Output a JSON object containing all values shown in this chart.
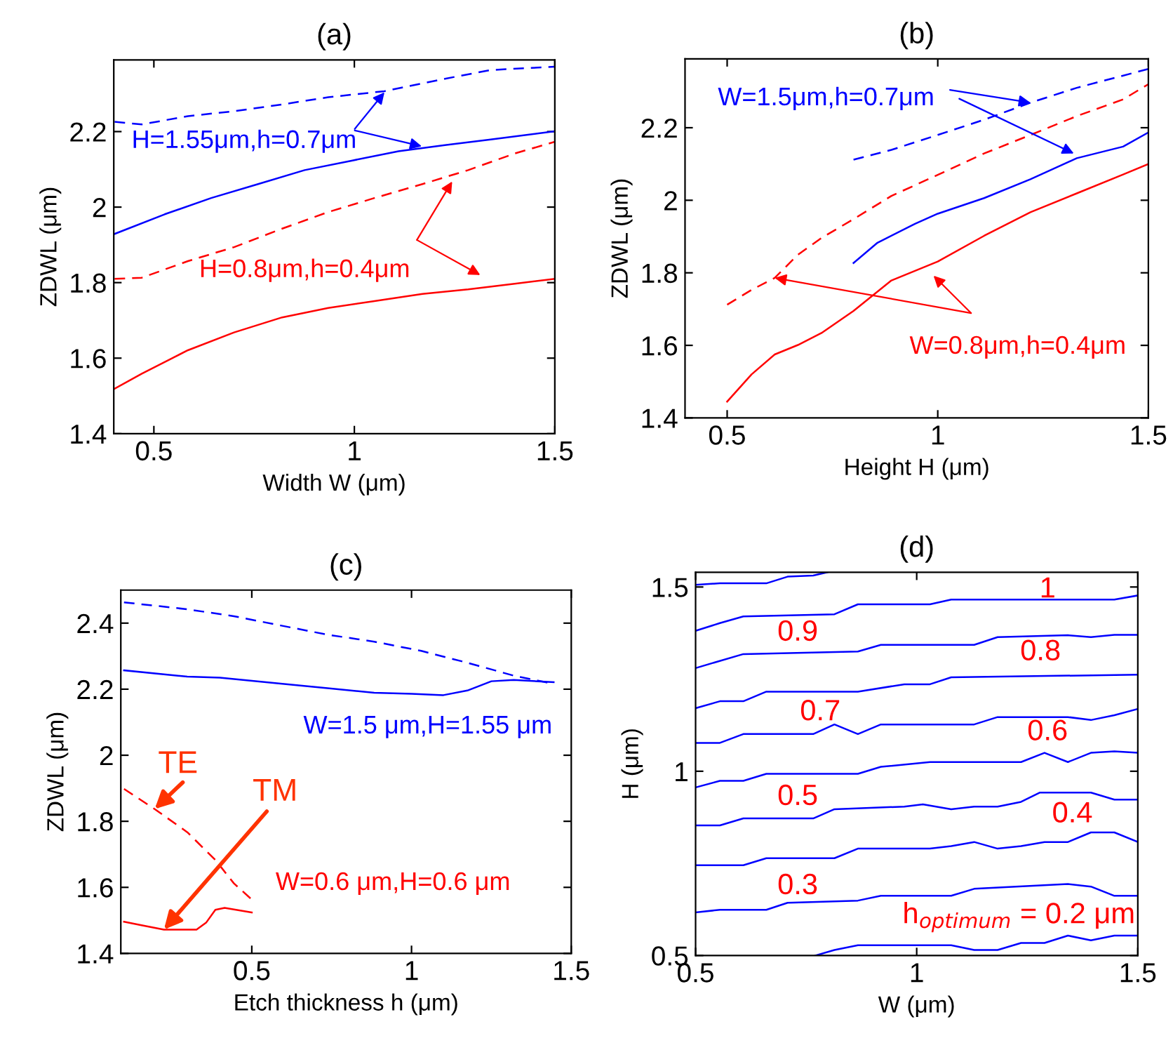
{
  "chart_data": [
    {
      "type": "line",
      "title": "(a)",
      "xlabel": "Width W (μm)",
      "ylabel": "ZDWL (μm)",
      "xlim": [
        0.4,
        1.5
      ],
      "ylim": [
        1.4,
        2.39
      ],
      "xticks": [
        0.5,
        1,
        1.5
      ],
      "yticks": [
        1.4,
        1.6,
        1.8,
        2,
        2.2
      ],
      "grid": false,
      "series": [
        {
          "color": "#0000ff",
          "line_style": "dashed",
          "x": [
            0.402,
            0.47,
            0.585,
            0.7,
            0.82,
            0.935,
            1.075,
            1.226,
            1.34,
            1.5
          ],
          "values": [
            2.226,
            2.219,
            2.241,
            2.254,
            2.272,
            2.291,
            2.307,
            2.34,
            2.363,
            2.372
          ]
        },
        {
          "color": "#0000ff",
          "line_style": "solid",
          "x": [
            0.402,
            0.527,
            0.643,
            0.76,
            0.876,
            0.993,
            1.11,
            1.226,
            1.34,
            1.5
          ],
          "values": [
            1.929,
            1.981,
            2.024,
            2.061,
            2.098,
            2.123,
            2.148,
            2.164,
            2.179,
            2.201
          ]
        },
        {
          "color": "#ff0000",
          "line_style": "dashed",
          "x": [
            0.402,
            0.47,
            0.585,
            0.7,
            0.82,
            0.935,
            1.05,
            1.17,
            1.284,
            1.4,
            1.5
          ],
          "values": [
            1.81,
            1.813,
            1.857,
            1.894,
            1.943,
            1.987,
            2.024,
            2.061,
            2.098,
            2.142,
            2.173
          ]
        },
        {
          "color": "#ff0000",
          "line_style": "solid",
          "x": [
            0.402,
            0.47,
            0.585,
            0.7,
            0.82,
            0.935,
            1.05,
            1.17,
            1.284,
            1.4,
            1.5
          ],
          "values": [
            1.519,
            1.559,
            1.621,
            1.668,
            1.708,
            1.733,
            1.751,
            1.77,
            1.782,
            1.797,
            1.81
          ]
        }
      ],
      "annotations": [
        {
          "text": "H=1.55μm,h=0.7μm",
          "x": 1.075,
          "y": 2.304
        },
        {
          "text": "H=0.8μm,h=0.4μm",
          "x": 1.244,
          "y": 2.068
        }
      ]
    },
    {
      "type": "line",
      "title": "(b)",
      "xlabel": "Height H (μm)",
      "ylabel": "ZDWL (μm)",
      "xlim": [
        0.4,
        1.5
      ],
      "ylim": [
        1.4,
        2.39
      ],
      "xticks": [
        0.5,
        1,
        1.5
      ],
      "yticks": [
        1.4,
        1.6,
        1.8,
        2,
        2.2
      ],
      "grid": false,
      "series": [
        {
          "color": "#0000ff",
          "line_style": "dashed",
          "x": [
            0.8,
            0.89,
            1.0,
            1.11,
            1.22,
            1.33,
            1.5
          ],
          "values": [
            2.112,
            2.139,
            2.18,
            2.222,
            2.269,
            2.31,
            2.362
          ]
        },
        {
          "color": "#ff0000",
          "line_style": "dashed",
          "x": [
            0.5,
            0.558,
            0.613,
            0.668,
            0.724,
            0.8,
            0.89,
            1.0,
            1.11,
            1.22,
            1.33,
            1.44,
            1.5
          ],
          "values": [
            1.712,
            1.753,
            1.786,
            1.85,
            1.896,
            1.948,
            2.012,
            2.07,
            2.129,
            2.18,
            2.232,
            2.278,
            2.32
          ]
        },
        {
          "color": "#0000ff",
          "line_style": "solid",
          "x": [
            0.8,
            0.857,
            0.946,
            1.0,
            1.11,
            1.22,
            1.33,
            1.44,
            1.5
          ],
          "values": [
            1.827,
            1.883,
            1.935,
            1.963,
            2.006,
            2.058,
            2.116,
            2.148,
            2.187
          ]
        },
        {
          "color": "#ff0000",
          "line_style": "solid",
          "x": [
            0.5,
            0.558,
            0.613,
            0.668,
            0.724,
            0.8,
            0.89,
            1.0,
            1.11,
            1.22,
            1.33,
            1.44,
            1.5
          ],
          "values": [
            1.445,
            1.52,
            1.575,
            1.601,
            1.634,
            1.695,
            1.779,
            1.831,
            1.902,
            1.967,
            2.019,
            2.071,
            2.1
          ]
        }
      ],
      "annotations": [
        {
          "text": "W=1.5μm,h=0.7μm",
          "x": 1.22,
          "y": 2.269
        },
        {
          "text": "W=0.8μm,h=0.4μm",
          "x": 0.613,
          "y": 1.786
        }
      ]
    },
    {
      "type": "line",
      "title": "(c)",
      "xlabel": "Etch thickness h (μm)",
      "ylabel": "ZDWL (μm)",
      "xlim": [
        0.09,
        1.5
      ],
      "ylim": [
        1.4,
        2.5
      ],
      "xticks": [
        0.5,
        1,
        1.5
      ],
      "yticks": [
        1.4,
        1.6,
        1.8,
        2,
        2.2,
        2.4
      ],
      "grid": false,
      "series": [
        {
          "color": "#0000ff",
          "line_style": "dashed",
          "x": [
            0.1,
            0.298,
            0.444,
            0.59,
            0.737,
            0.883,
            1.03,
            1.175,
            1.32,
            1.44
          ],
          "values": [
            2.463,
            2.442,
            2.421,
            2.393,
            2.365,
            2.344,
            2.316,
            2.28,
            2.241,
            2.217
          ]
        },
        {
          "color": "#0000ff",
          "line_style": "solid",
          "x": [
            0.1,
            0.298,
            0.4,
            0.59,
            0.737,
            0.883,
            1.0,
            1.1,
            1.175,
            1.25,
            1.32,
            1.445
          ],
          "values": [
            2.257,
            2.238,
            2.235,
            2.217,
            2.203,
            2.189,
            2.186,
            2.182,
            2.196,
            2.224,
            2.228,
            2.221
          ]
        },
        {
          "color": "#ff0000",
          "line_style": "dashed",
          "x": [
            0.1,
            0.196,
            0.298,
            0.386,
            0.444,
            0.5
          ],
          "values": [
            1.898,
            1.837,
            1.767,
            1.683,
            1.612,
            1.563
          ]
        },
        {
          "color": "#ff0000",
          "line_style": "solid",
          "x": [
            0.1,
            0.152,
            0.225,
            0.327,
            0.357,
            0.386,
            0.415,
            0.5
          ],
          "values": [
            1.496,
            1.486,
            1.472,
            1.472,
            1.493,
            1.532,
            1.538,
            1.524
          ]
        }
      ],
      "annotations": [
        "W=1.5 μm,H=1.55 μm",
        {
          "text": "TE",
          "x": 0.196,
          "y": 1.837
        },
        {
          "text": "TM",
          "x": 0.225,
          "y": 1.472
        },
        "W=0.6 μm,H=0.6 μm"
      ]
    },
    {
      "type": "line",
      "title": "(d)",
      "xlabel": "W (μm)",
      "ylabel": "H (μm)",
      "xlim": [
        0.5,
        1.5
      ],
      "ylim": [
        0.5,
        1.54
      ],
      "xticks": [
        0.5,
        1,
        1.5
      ],
      "yticks": [
        0.5,
        1,
        1.5
      ],
      "grid": false,
      "series": [
        {
          "color": "#0000ff",
          "line_style": "solid",
          "x": [
            0.5,
            0.555,
            0.66,
            0.708,
            0.766,
            0.798
          ],
          "values": [
            1.506,
            1.51,
            1.51,
            1.528,
            1.531,
            1.54
          ]
        },
        {
          "color": "#0000ff",
          "line_style": "solid",
          "x": [
            0.5,
            0.555,
            0.608,
            0.814,
            0.867,
            1.03,
            1.078,
            1.447,
            1.5
          ],
          "values": [
            1.381,
            1.402,
            1.42,
            1.426,
            1.453,
            1.453,
            1.466,
            1.466,
            1.477
          ]
        },
        {
          "color": "#0000ff",
          "line_style": "solid",
          "x": [
            0.5,
            0.608,
            0.867,
            0.919,
            1.13,
            1.183,
            1.342,
            1.394,
            1.447,
            1.5
          ],
          "values": [
            1.28,
            1.318,
            1.325,
            1.343,
            1.343,
            1.364,
            1.369,
            1.364,
            1.37,
            1.37
          ]
        },
        {
          "color": "#0000ff",
          "line_style": "solid",
          "x": [
            0.5,
            0.555,
            0.608,
            0.66,
            0.867,
            0.972,
            1.03,
            1.078,
            1.5
          ],
          "values": [
            1.171,
            1.19,
            1.19,
            1.216,
            1.216,
            1.236,
            1.236,
            1.255,
            1.262
          ]
        },
        {
          "color": "#0000ff",
          "line_style": "solid",
          "x": [
            0.5,
            0.555,
            0.608,
            0.766,
            0.814,
            0.867,
            0.919,
            1.13,
            1.183,
            1.342,
            1.394,
            1.447,
            1.5
          ],
          "values": [
            1.077,
            1.077,
            1.101,
            1.101,
            1.127,
            1.101,
            1.127,
            1.127,
            1.147,
            1.147,
            1.139,
            1.152,
            1.169
          ]
        },
        {
          "color": "#0000ff",
          "line_style": "solid",
          "x": [
            0.5,
            0.555,
            0.608,
            0.66,
            0.867,
            0.919,
            1.03,
            1.236,
            1.289,
            1.342,
            1.394,
            1.447,
            1.5
          ],
          "values": [
            0.956,
            0.974,
            0.974,
            0.993,
            0.993,
            1.012,
            1.025,
            1.025,
            1.05,
            1.025,
            1.05,
            1.054,
            1.05
          ]
        },
        {
          "color": "#0000ff",
          "line_style": "solid",
          "x": [
            0.5,
            0.555,
            0.608,
            0.766,
            0.814,
            0.972,
            1.014,
            1.078,
            1.13,
            1.183,
            1.236,
            1.278,
            1.394,
            1.447,
            1.5
          ],
          "values": [
            0.853,
            0.853,
            0.872,
            0.872,
            0.897,
            0.904,
            0.91,
            0.897,
            0.904,
            0.904,
            0.917,
            0.942,
            0.942,
            0.923,
            0.923
          ]
        },
        {
          "color": "#0000ff",
          "line_style": "solid",
          "x": [
            0.5,
            0.608,
            0.66,
            0.814,
            0.867,
            1.03,
            1.078,
            1.13,
            1.183,
            1.236,
            1.289,
            1.342,
            1.394,
            1.447,
            1.5
          ],
          "values": [
            0.745,
            0.745,
            0.764,
            0.764,
            0.79,
            0.79,
            0.797,
            0.808,
            0.79,
            0.797,
            0.808,
            0.808,
            0.834,
            0.834,
            0.808
          ]
        },
        {
          "color": "#0000ff",
          "line_style": "solid",
          "x": [
            0.5,
            0.555,
            0.66,
            0.708,
            0.867,
            0.919,
            1.078,
            1.13,
            1.342,
            1.394,
            1.447,
            1.5
          ],
          "values": [
            0.617,
            0.624,
            0.624,
            0.643,
            0.649,
            0.662,
            0.662,
            0.681,
            0.694,
            0.687,
            0.662,
            0.662
          ]
        },
        {
          "color": "#0000ff",
          "line_style": "solid",
          "x": [
            0.771,
            0.814,
            0.867,
            1.078,
            1.13,
            1.183,
            1.236,
            1.289,
            1.342,
            1.394,
            1.447,
            1.5
          ],
          "values": [
            0.5,
            0.515,
            0.528,
            0.528,
            0.515,
            0.515,
            0.534,
            0.534,
            0.554,
            0.541,
            0.554,
            0.554
          ]
        }
      ],
      "annotations": [
        "1",
        "0.9",
        "0.8",
        "0.7",
        "0.6",
        "0.5",
        "0.4",
        "0.3",
        "h$_{optimum}$ = 0.2 μm"
      ]
    }
  ]
}
